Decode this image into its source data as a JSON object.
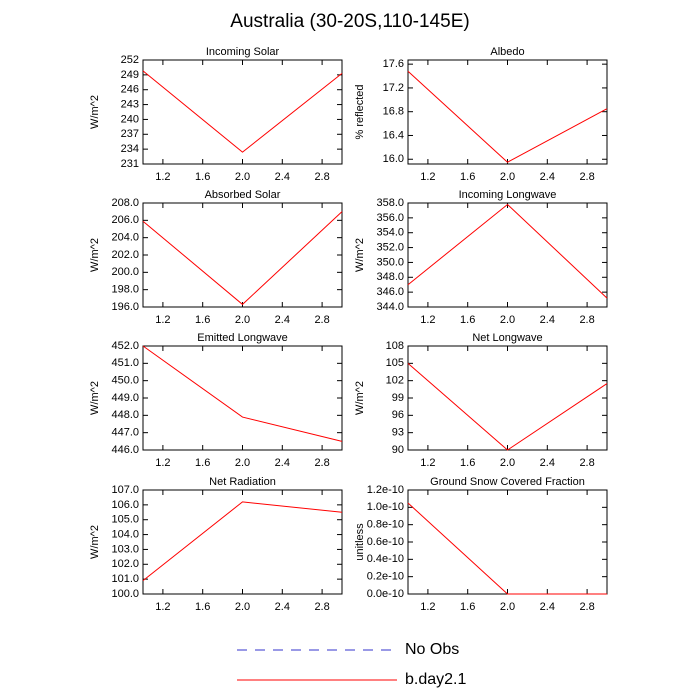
{
  "title": "Australia (30-20S,110-145E)",
  "legend": [
    {
      "name": "No Obs",
      "color": "#3333cc",
      "dashed": true
    },
    {
      "name": "b.day2.1",
      "color": "#ff0000",
      "dashed": false
    }
  ],
  "chart_data": [
    {
      "type": "line",
      "title": "Incoming Solar",
      "ylabel": "W/m^2",
      "x": [
        1,
        2,
        3
      ],
      "series": [
        {
          "color": "#ff0000",
          "values": [
            249.8,
            233.4,
            249.3
          ]
        }
      ],
      "xlim": [
        1,
        3
      ],
      "xticks": [
        1.2,
        1.6,
        {
          "value": 2,
          "label": "2.0"
        },
        2.4,
        2.8
      ],
      "ylim": [
        231,
        252
      ],
      "yticks": [
        231,
        234,
        237,
        240,
        243,
        246,
        249,
        252
      ]
    },
    {
      "type": "line",
      "title": "Albedo",
      "ylabel": "% reflected",
      "x": [
        1,
        2,
        3
      ],
      "series": [
        {
          "color": "#ff0000",
          "values": [
            17.48,
            15.95,
            16.85
          ]
        }
      ],
      "xlim": [
        1,
        3
      ],
      "xticks": [
        1.2,
        1.6,
        {
          "value": 2,
          "label": "2.0"
        },
        2.4,
        2.8
      ],
      "ylim": [
        15.92,
        17.67
      ],
      "yticks": [
        {
          "value": 16,
          "label": "16.0"
        },
        16.4,
        16.8,
        17.2,
        17.6
      ]
    },
    {
      "type": "line",
      "title": "Absorbed Solar",
      "ylabel": "W/m^2",
      "x": [
        1,
        2,
        3
      ],
      "series": [
        {
          "color": "#ff0000",
          "values": [
            205.9,
            196.3,
            207.0
          ]
        }
      ],
      "xlim": [
        1,
        3
      ],
      "xticks": [
        1.2,
        1.6,
        {
          "value": 2,
          "label": "2.0"
        },
        2.4,
        2.8
      ],
      "ylim": [
        196,
        208
      ],
      "yticks": [
        {
          "value": 196,
          "label": "196.0"
        },
        {
          "value": 198,
          "label": "198.0"
        },
        {
          "value": 200,
          "label": "200.0"
        },
        {
          "value": 202,
          "label": "202.0"
        },
        {
          "value": 204,
          "label": "204.0"
        },
        {
          "value": 206,
          "label": "206.0"
        },
        {
          "value": 208,
          "label": "208.0"
        }
      ]
    },
    {
      "type": "line",
      "title": "Incoming Longwave",
      "ylabel": "W/m^2",
      "x": [
        1,
        2,
        3
      ],
      "series": [
        {
          "color": "#ff0000",
          "values": [
            347.0,
            357.8,
            345.2
          ]
        }
      ],
      "xlim": [
        1,
        3
      ],
      "xticks": [
        1.2,
        1.6,
        {
          "value": 2,
          "label": "2.0"
        },
        2.4,
        2.8
      ],
      "ylim": [
        344,
        358
      ],
      "yticks": [
        {
          "value": 344,
          "label": "344.0"
        },
        {
          "value": 346,
          "label": "346.0"
        },
        {
          "value": 348,
          "label": "348.0"
        },
        {
          "value": 350,
          "label": "350.0"
        },
        {
          "value": 352,
          "label": "352.0"
        },
        {
          "value": 354,
          "label": "354.0"
        },
        {
          "value": 356,
          "label": "356.0"
        },
        {
          "value": 358,
          "label": "358.0"
        }
      ]
    },
    {
      "type": "line",
      "title": "Emitted Longwave",
      "ylabel": "W/m^2",
      "x": [
        1,
        2,
        3
      ],
      "series": [
        {
          "color": "#ff0000",
          "values": [
            452.0,
            447.9,
            446.5
          ]
        }
      ],
      "xlim": [
        1,
        3
      ],
      "xticks": [
        1.2,
        1.6,
        {
          "value": 2,
          "label": "2.0"
        },
        2.4,
        2.8
      ],
      "ylim": [
        446,
        452
      ],
      "yticks": [
        {
          "value": 446,
          "label": "446.0"
        },
        {
          "value": 447,
          "label": "447.0"
        },
        {
          "value": 448,
          "label": "448.0"
        },
        {
          "value": 449,
          "label": "449.0"
        },
        {
          "value": 450,
          "label": "450.0"
        },
        {
          "value": 451,
          "label": "451.0"
        },
        {
          "value": 452,
          "label": "452.0"
        }
      ]
    },
    {
      "type": "line",
      "title": "Net Longwave",
      "ylabel": "W/m^2",
      "x": [
        1,
        2,
        3
      ],
      "series": [
        {
          "color": "#ff0000",
          "values": [
            105.0,
            90.0,
            101.5
          ]
        }
      ],
      "xlim": [
        1,
        3
      ],
      "xticks": [
        1.2,
        1.6,
        {
          "value": 2,
          "label": "2.0"
        },
        2.4,
        2.8
      ],
      "ylim": [
        90,
        108
      ],
      "yticks": [
        90,
        93,
        96,
        99,
        102,
        105,
        108
      ]
    },
    {
      "type": "line",
      "title": "Net Radiation",
      "ylabel": "W/m^2",
      "x": [
        1,
        2,
        3
      ],
      "series": [
        {
          "color": "#ff0000",
          "values": [
            100.9,
            106.2,
            105.5
          ]
        }
      ],
      "xlim": [
        1,
        3
      ],
      "xticks": [
        1.2,
        1.6,
        {
          "value": 2,
          "label": "2.0"
        },
        2.4,
        2.8
      ],
      "ylim": [
        100,
        107
      ],
      "yticks": [
        {
          "value": 100,
          "label": "100.0"
        },
        {
          "value": 101,
          "label": "101.0"
        },
        {
          "value": 102,
          "label": "102.0"
        },
        {
          "value": 103,
          "label": "103.0"
        },
        {
          "value": 104,
          "label": "104.0"
        },
        {
          "value": 105,
          "label": "105.0"
        },
        {
          "value": 106,
          "label": "106.0"
        },
        {
          "value": 107,
          "label": "107.0"
        }
      ]
    },
    {
      "type": "line",
      "title": "Ground Snow Covered Fraction",
      "ylabel": "unitless",
      "x": [
        1,
        2,
        3
      ],
      "series": [
        {
          "color": "#ff0000",
          "values": [
            1.05e-10,
            0,
            0
          ]
        }
      ],
      "xlim": [
        1,
        3
      ],
      "xticks": [
        1.2,
        1.6,
        {
          "value": 2,
          "label": "2.0"
        },
        2.4,
        2.8
      ],
      "ylim": [
        0,
        1.2e-10
      ],
      "yticks": [
        {
          "value": 0,
          "label": "0.0e-10"
        },
        {
          "value": 2e-11,
          "label": "0.2e-10"
        },
        {
          "value": 4e-11,
          "label": "0.4e-10"
        },
        {
          "value": 6e-11,
          "label": "0.6e-10"
        },
        {
          "value": 8e-11,
          "label": "0.8e-10"
        },
        {
          "value": 1e-10,
          "label": "1.0e-10"
        },
        {
          "value": 1.2e-10,
          "label": "1.2e-10"
        }
      ]
    }
  ]
}
